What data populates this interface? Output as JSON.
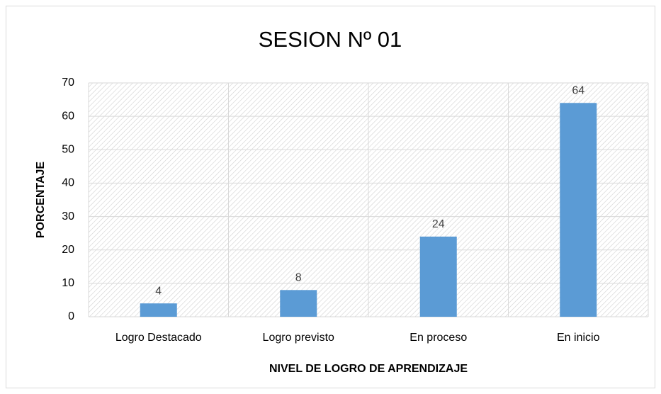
{
  "chart_data": {
    "type": "bar",
    "title": "SESION Nº 01",
    "categories": [
      "Logro Destacado",
      "Logro previsto",
      "En proceso",
      "En inicio"
    ],
    "values": [
      4,
      8,
      24,
      64
    ],
    "color": "#5b9bd5",
    "xlabel": "NIVEL DE LOGRO DE APRENDIZAJE",
    "ylabel": "PORCENTAJE",
    "ylim": [
      0,
      70
    ],
    "yticks": [
      0,
      10,
      20,
      30,
      40,
      50,
      60,
      70
    ],
    "grid": true
  }
}
